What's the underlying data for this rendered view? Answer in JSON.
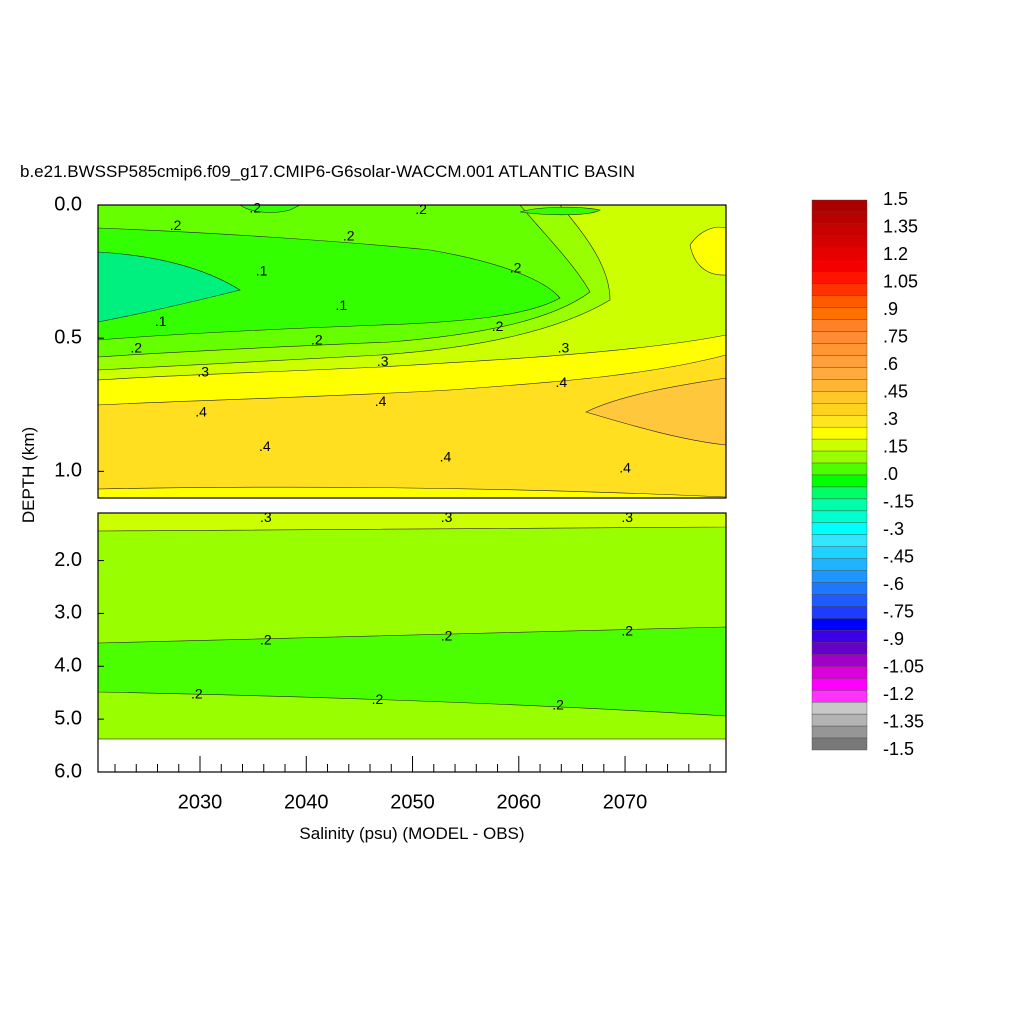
{
  "chart_data": {
    "type": "contour",
    "title": "b.e21.BWSSP585cmip6.f09_g17.CMIP6-G6solar-WACCM.001 ATLANTIC BASIN",
    "x_label": "Salinity (psu) (MODEL - OBS)",
    "y_label": "DEPTH (km)",
    "xlim": [
      2020.4,
      2079.5
    ],
    "xticks": [
      2030,
      2040,
      2050,
      2060,
      2070
    ],
    "xminor": [
      2022,
      2024,
      2026,
      2028,
      2032,
      2034,
      2036,
      2038,
      2042,
      2044,
      2046,
      2048,
      2052,
      2054,
      2056,
      2058,
      2062,
      2064,
      2066,
      2068,
      2072,
      2074,
      2076,
      2078
    ],
    "panels": [
      {
        "ylim": [
          0,
          1.1
        ],
        "yticks": [
          {
            "value": 0,
            "label": "0.0"
          },
          {
            "value": 0.5,
            "label": "0.5"
          },
          {
            "value": 1,
            "label": "1.0"
          }
        ],
        "contour_labels": [
          {
            "value": 0.2,
            "label": ".2",
            "x": 2035.2,
            "y": 0.015
          },
          {
            "value": 0.2,
            "label": ".2",
            "x": 2050.8,
            "y": 0.02
          },
          {
            "value": 0.2,
            "label": ".2",
            "x": 2027.7,
            "y": 0.08
          },
          {
            "value": 0.2,
            "label": ".2",
            "x": 2044.0,
            "y": 0.12
          },
          {
            "value": 0.1,
            "label": ".1",
            "x": 2035.8,
            "y": 0.25
          },
          {
            "value": 0.2,
            "label": ".2",
            "x": 2059.7,
            "y": 0.24
          },
          {
            "value": 0.1,
            "label": ".1",
            "x": 2043.3,
            "y": 0.38
          },
          {
            "value": 0.1,
            "label": ".1",
            "x": 2026.3,
            "y": 0.44
          },
          {
            "value": 0.2,
            "label": ".2",
            "x": 2058.0,
            "y": 0.46
          },
          {
            "value": 0.2,
            "label": ".2",
            "x": 2041.0,
            "y": 0.51
          },
          {
            "value": 0.2,
            "label": ".2",
            "x": 2024.0,
            "y": 0.54
          },
          {
            "value": 0.3,
            "label": ".3",
            "x": 2064.2,
            "y": 0.54
          },
          {
            "value": 0.3,
            "label": ".3",
            "x": 2047.2,
            "y": 0.59
          },
          {
            "value": 0.3,
            "label": ".3",
            "x": 2030.3,
            "y": 0.63
          },
          {
            "value": 0.4,
            "label": ".4",
            "x": 2064.0,
            "y": 0.67
          },
          {
            "value": 0.4,
            "label": ".4",
            "x": 2047.0,
            "y": 0.74
          },
          {
            "value": 0.4,
            "label": ".4",
            "x": 2030.1,
            "y": 0.78
          },
          {
            "value": 0.4,
            "label": ".4",
            "x": 2036.1,
            "y": 0.91
          },
          {
            "value": 0.4,
            "label": ".4",
            "x": 2053.1,
            "y": 0.95
          },
          {
            "value": 0.4,
            "label": ".4",
            "x": 2070.0,
            "y": 0.99
          }
        ]
      },
      {
        "ylim": [
          1.1,
          6
        ],
        "yticks": [
          {
            "value": 2,
            "label": "2.0"
          },
          {
            "value": 3,
            "label": "3.0"
          },
          {
            "value": 4,
            "label": "4.0"
          },
          {
            "value": 5,
            "label": "5.0"
          },
          {
            "value": 6,
            "label": "6.0"
          }
        ],
        "contour_labels": [
          {
            "value": 0.3,
            "label": ".3",
            "x": 2036.2,
            "y": 1.2
          },
          {
            "value": 0.3,
            "label": ".3",
            "x": 2053.2,
            "y": 1.2
          },
          {
            "value": 0.3,
            "label": ".3",
            "x": 2070.2,
            "y": 1.2
          },
          {
            "value": 0.2,
            "label": ".2",
            "x": 2036.2,
            "y": 3.52
          },
          {
            "value": 0.2,
            "label": ".2",
            "x": 2053.2,
            "y": 3.44
          },
          {
            "value": 0.2,
            "label": ".2",
            "x": 2070.2,
            "y": 3.35
          },
          {
            "value": 0.2,
            "label": ".2",
            "x": 2029.7,
            "y": 4.54
          },
          {
            "value": 0.2,
            "label": ".2",
            "x": 2046.7,
            "y": 4.64
          },
          {
            "value": 0.2,
            "label": ".2",
            "x": 2063.7,
            "y": 4.75
          }
        ]
      }
    ],
    "colorbar": {
      "range": [
        1.5,
        -1.5
      ],
      "levels": [
        {
          "value": 1.5,
          "label": "1.5"
        },
        {
          "value": 1.35,
          "label": "1.35"
        },
        {
          "value": 1.2,
          "label": "1.2"
        },
        {
          "value": 1.05,
          "label": "1.05"
        },
        {
          "value": 0.9,
          "label": ".9"
        },
        {
          "value": 0.75,
          "label": ".75"
        },
        {
          "value": 0.6,
          "label": ".6"
        },
        {
          "value": 0.45,
          "label": ".45"
        },
        {
          "value": 0.3,
          "label": ".3"
        },
        {
          "value": 0.15,
          "label": ".15"
        },
        {
          "value": 0,
          "label": ".0"
        },
        {
          "value": -0.15,
          "label": "-.15"
        },
        {
          "value": -0.3,
          "label": "-.3"
        },
        {
          "value": -0.45,
          "label": "-.45"
        },
        {
          "value": -0.6,
          "label": "-.6"
        },
        {
          "value": -0.75,
          "label": "-.75"
        },
        {
          "value": -0.9,
          "label": "-.9"
        },
        {
          "value": -1.05,
          "label": "-1.05"
        },
        {
          "value": -1.2,
          "label": "-1.2"
        },
        {
          "value": -1.35,
          "label": "-1.35"
        },
        {
          "value": -1.5,
          "label": "-1.5"
        }
      ],
      "colors": [
        "#aa0000",
        "#b90000",
        "#c80000",
        "#d70000",
        "#e60000",
        "#f50000",
        "#ff1400",
        "#ff3200",
        "#ff5a00",
        "#ff7000",
        "#ff8228",
        "#ff8c32",
        "#ff9632",
        "#ffa03c",
        "#ffaa3c",
        "#ffb432",
        "#ffc828",
        "#ffd21e",
        "#ffe61e",
        "#ffff00",
        "#ccff00",
        "#99ff00",
        "#4cff00",
        "#00ff00",
        "#00ff66",
        "#00ffaa",
        "#00ffcc",
        "#00ffff",
        "#32e6ff",
        "#1ed2ff",
        "#1eb4ff",
        "#1e96ff",
        "#1e78ff",
        "#1e5aff",
        "#1e3cff",
        "#0000ff",
        "#3c00e6",
        "#6400c8",
        "#a000c8",
        "#dc00dc",
        "#ff00ff",
        "#ff32ff",
        "#c8c8c8",
        "#b4b4b4",
        "#969696",
        "#787878"
      ]
    }
  }
}
